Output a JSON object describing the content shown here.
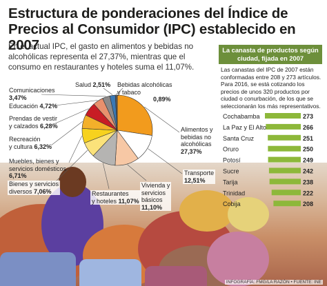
{
  "header": {
    "title": "Estructura de ponderaciones del Índice de Precios al Consumidor (IPC) establecido en 2007",
    "intro": "En el actual IPC, el gasto en alimentos y bebidas no alcohólicas representa el 27,37%, mientras que el consumo en restaurantes y hoteles suma el 11,07%."
  },
  "panel": {
    "heading": "La canasta de productos según ciudad, fijada en 2007",
    "text": "Las canastas del IPC de 2007 están conformadas entre 208 y 273 artículos. Para 2016, se está cotizando los precios de unos 320 productos por ciudad o conurbación, de los que se seleccionarán los más representativos."
  },
  "credit": "INFOGRAFÍA: FMG/LA RAZÓN • FUENTE: INE",
  "chart_data": [
    {
      "type": "pie",
      "title": "",
      "slices": [
        {
          "label": "Alimentos y bebidas no alcohólicas",
          "value": 27.37,
          "display": "27,37%",
          "color": "#f29b1d"
        },
        {
          "label": "Transporte",
          "value": 12.51,
          "display": "12,51%",
          "color": "#ffffff"
        },
        {
          "label": "Vivienda y servicios básicos",
          "value": 11.1,
          "display": "11,10%",
          "color": "#f7c8a5"
        },
        {
          "label": "Restaurantes y hoteles",
          "value": 11.07,
          "display": "11,07%",
          "color": "#b5b4b2"
        },
        {
          "label": "Bienes y servicios diversos",
          "value": 7.06,
          "display": "7,06%",
          "color": "#fbe27a"
        },
        {
          "label": "Muebles, bienes y servicios domésticos",
          "value": 6.71,
          "display": "6,71%",
          "color": "#f7d21e"
        },
        {
          "label": "Recreación y cultura",
          "value": 6.32,
          "display": "6,32%",
          "color": "#f3b02a"
        },
        {
          "label": "Prendas de vestir y calzados",
          "value": 6.28,
          "display": "6,28%",
          "color": "#c81d25"
        },
        {
          "label": "Educación",
          "value": 4.72,
          "display": "4,72%",
          "color": "#e9906d"
        },
        {
          "label": "Comunicaciones",
          "value": 3.47,
          "display": "3,47%",
          "color": "#8c8a8a"
        },
        {
          "label": "Salud",
          "value": 2.51,
          "display": "2,51%",
          "color": "#3a78b4"
        },
        {
          "label": "Bebidas alcohólicas y tabaco",
          "value": 0.89,
          "display": "0,89%",
          "color": "#5b5b5b"
        }
      ]
    },
    {
      "type": "bar",
      "title": "",
      "orientation": "horizontal",
      "categories": [
        "Cochabamba",
        "La Paz y El Alto",
        "Santa Cruz",
        "Oruro",
        "Potosí",
        "Sucre",
        "Tarija",
        "Trinidad",
        "Cobija"
      ],
      "values": [
        273,
        266,
        251,
        250,
        249,
        242,
        238,
        222,
        208
      ],
      "bar_color": "#8db83a",
      "xlim": [
        0,
        273
      ]
    }
  ]
}
